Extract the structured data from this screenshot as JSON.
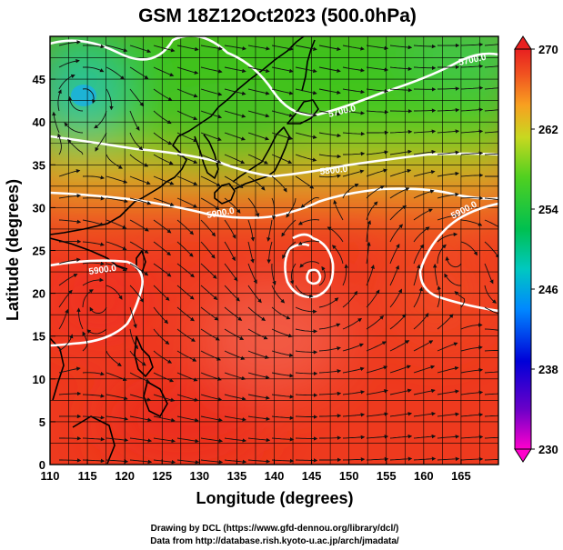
{
  "title": "GSM 18Z12Oct2023 (500.0hPa)",
  "xlabel": "Longitude (degrees)",
  "ylabel": "Latitude  (degrees)",
  "credit_line1": "Drawing by DCL (https://www.gfd-dennou.org/library/dcl/)",
  "credit_line2": "Data from http://database.rish.kyoto-u.ac.jp/arch/jmadata/",
  "colors": {
    "coast": "#000000",
    "contour": "#ffffff",
    "streamline": "#111111"
  },
  "chart_data": {
    "type": "heatmap",
    "xlim": [
      110,
      170
    ],
    "ylim": [
      0,
      50
    ],
    "x_ticks": [
      110,
      115,
      120,
      125,
      130,
      135,
      140,
      145,
      150,
      155,
      160,
      165
    ],
    "y_ticks": [
      0,
      5,
      10,
      15,
      20,
      25,
      30,
      35,
      40,
      45
    ],
    "grid": true,
    "colorbar": {
      "min": 230,
      "max": 270,
      "ticks": [
        230,
        238,
        246,
        254,
        262,
        270
      ],
      "placement": "right"
    },
    "contour_labels": [
      "5700.0",
      "5700.0",
      "5800.0",
      "5900.0",
      "5900.0",
      "5900.0"
    ]
  }
}
